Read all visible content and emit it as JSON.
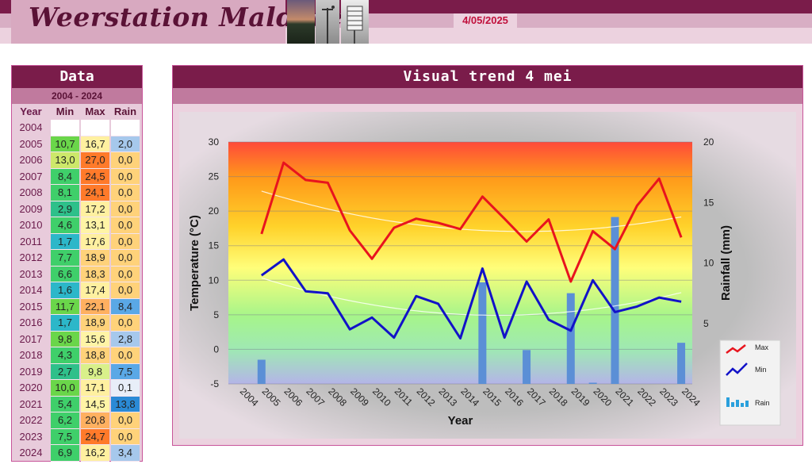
{
  "header": {
    "logo_text": "Weerstation Malderen",
    "date": "4/05/2025"
  },
  "data_panel": {
    "title": "Data",
    "range": "2004 - 2024",
    "col_year": "Year",
    "col_min": "Min",
    "col_max": "Max",
    "col_rain": "Rain",
    "rows": [
      {
        "year": "2004",
        "min": "",
        "max": "",
        "rain": ""
      },
      {
        "year": "2005",
        "min": "10,7",
        "max": "16,7",
        "rain": "2,0"
      },
      {
        "year": "2006",
        "min": "13,0",
        "max": "27,0",
        "rain": "0,0"
      },
      {
        "year": "2007",
        "min": "8,4",
        "max": "24,5",
        "rain": "0,0"
      },
      {
        "year": "2008",
        "min": "8,1",
        "max": "24,1",
        "rain": "0,0"
      },
      {
        "year": "2009",
        "min": "2,9",
        "max": "17,2",
        "rain": "0,0"
      },
      {
        "year": "2010",
        "min": "4,6",
        "max": "13,1",
        "rain": "0,0"
      },
      {
        "year": "2011",
        "min": "1,7",
        "max": "17,6",
        "rain": "0,0"
      },
      {
        "year": "2012",
        "min": "7,7",
        "max": "18,9",
        "rain": "0,0"
      },
      {
        "year": "2013",
        "min": "6,6",
        "max": "18,3",
        "rain": "0,0"
      },
      {
        "year": "2014",
        "min": "1,6",
        "max": "17,4",
        "rain": "0,0"
      },
      {
        "year": "2015",
        "min": "11,7",
        "max": "22,1",
        "rain": "8,4"
      },
      {
        "year": "2016",
        "min": "1,7",
        "max": "18,9",
        "rain": "0,0"
      },
      {
        "year": "2017",
        "min": "9,8",
        "max": "15,6",
        "rain": "2,8"
      },
      {
        "year": "2018",
        "min": "4,3",
        "max": "18,8",
        "rain": "0,0"
      },
      {
        "year": "2019",
        "min": "2,7",
        "max": "9,8",
        "rain": "7,5"
      },
      {
        "year": "2020",
        "min": "10,0",
        "max": "17,1",
        "rain": "0,1"
      },
      {
        "year": "2021",
        "min": "5,4",
        "max": "14,5",
        "rain": "13,8"
      },
      {
        "year": "2022",
        "min": "6,2",
        "max": "20,8",
        "rain": "0,0"
      },
      {
        "year": "2023",
        "min": "7,5",
        "max": "24,7",
        "rain": "0,0"
      },
      {
        "year": "2024",
        "min": "6,9",
        "max": "16,2",
        "rain": "3,4"
      }
    ]
  },
  "chart_panel": {
    "title": "Visual trend 4 mei"
  },
  "legend": {
    "max_label": "Max",
    "min_label": "Min",
    "rain_label": "Rain"
  },
  "colors": {
    "max_line": "#e8141e",
    "min_line": "#1212c8",
    "rain_bar": "#5b8fd6",
    "accent": "#7a1c4a"
  },
  "chart_data": {
    "type": "line",
    "xlabel": "Year",
    "ylabel": "Temperature (°C)",
    "y2label": "Rainfall (mm)",
    "ylim": [
      -5,
      30
    ],
    "y2lim": [
      0,
      20
    ],
    "yticks": [
      -5,
      0,
      5,
      10,
      15,
      20,
      25,
      30
    ],
    "y2ticks": [
      5,
      10,
      15,
      20
    ],
    "categories": [
      "2004",
      "2005",
      "2006",
      "2007",
      "2008",
      "2009",
      "2010",
      "2011",
      "2012",
      "2013",
      "2014",
      "2015",
      "2016",
      "2017",
      "2018",
      "2019",
      "2020",
      "2021",
      "2022",
      "2023",
      "2024"
    ],
    "grid": true,
    "legend_position": "bottom-right",
    "series": [
      {
        "name": "Max",
        "axis": "left",
        "values": [
          null,
          16.7,
          27.0,
          24.5,
          24.1,
          17.2,
          13.1,
          17.6,
          18.9,
          18.3,
          17.4,
          22.1,
          18.9,
          15.6,
          18.8,
          9.8,
          17.1,
          14.5,
          20.8,
          24.7,
          16.2
        ]
      },
      {
        "name": "Min",
        "axis": "left",
        "values": [
          null,
          10.7,
          13.0,
          8.4,
          8.1,
          2.9,
          4.6,
          1.7,
          7.7,
          6.6,
          1.6,
          11.7,
          1.7,
          9.8,
          4.3,
          2.7,
          10.0,
          5.4,
          6.2,
          7.5,
          6.9
        ]
      },
      {
        "name": "Rain",
        "axis": "right",
        "type": "bar",
        "values": [
          null,
          2.0,
          0.0,
          0.0,
          0.0,
          0.0,
          0.0,
          0.0,
          0.0,
          0.0,
          0.0,
          8.4,
          0.0,
          2.8,
          0.0,
          7.5,
          0.1,
          13.8,
          0.0,
          0.0,
          3.4
        ]
      }
    ]
  }
}
